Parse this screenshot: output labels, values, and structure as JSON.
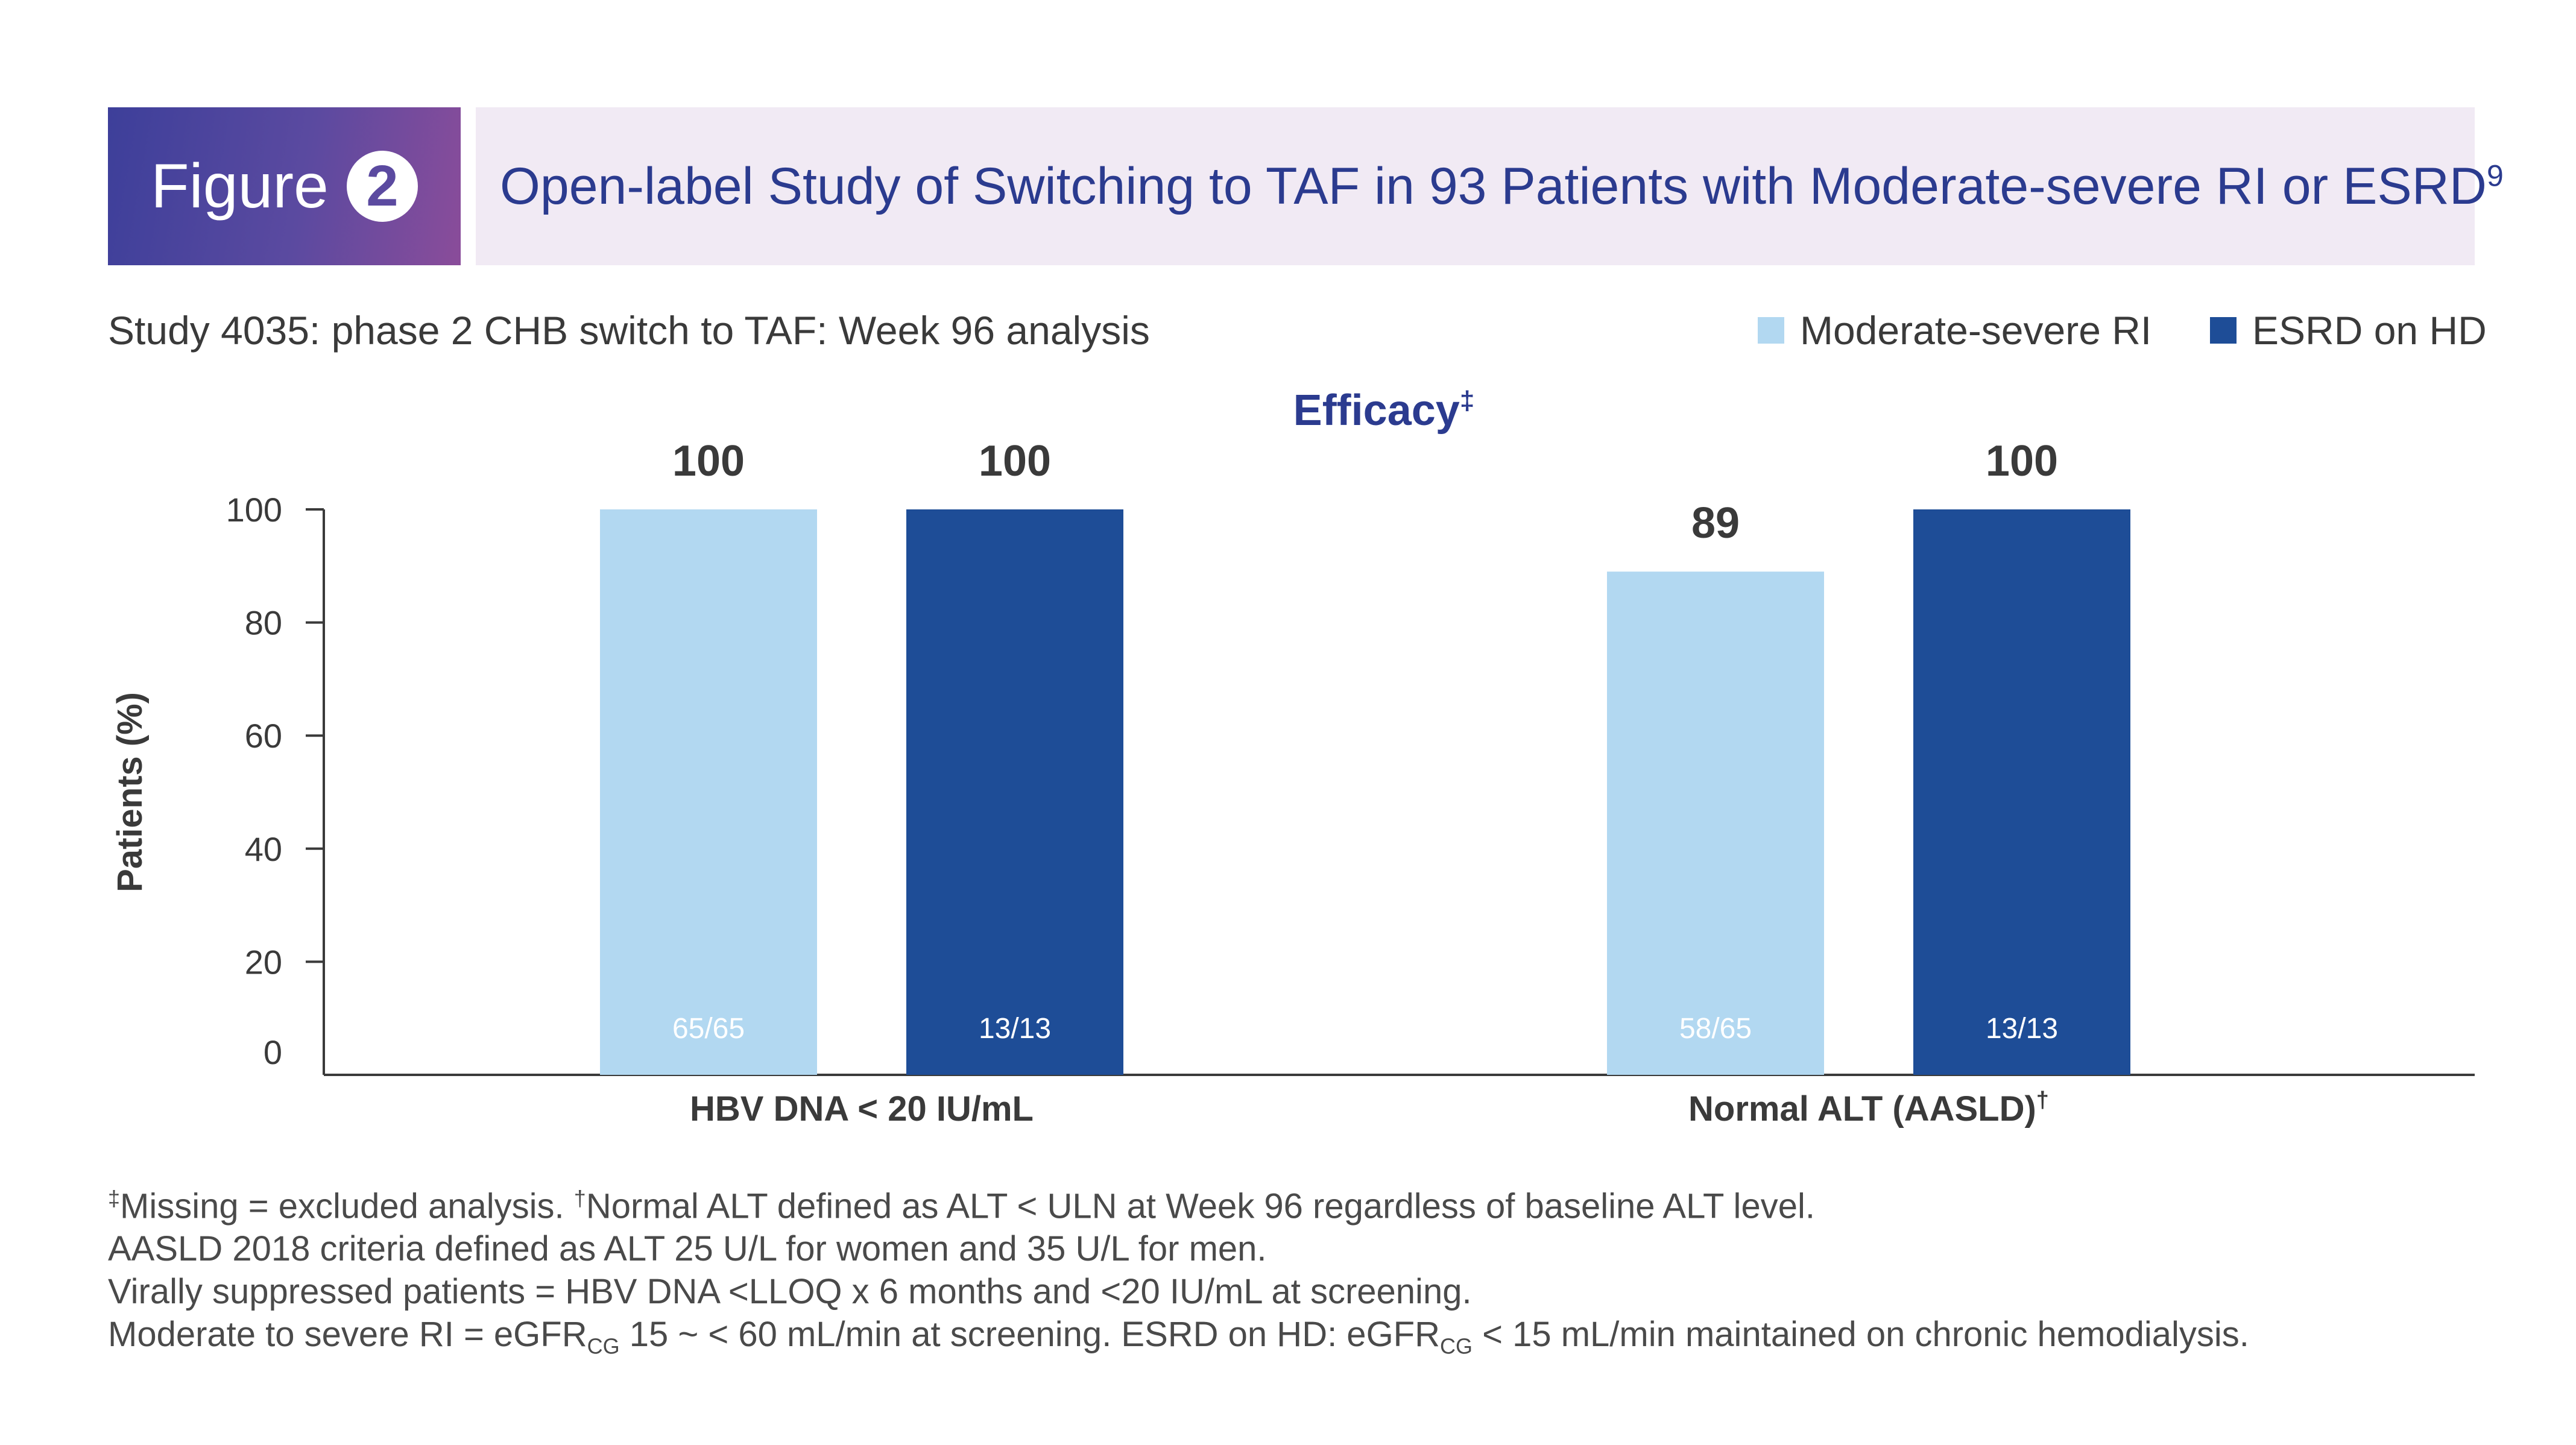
{
  "figure": {
    "label": "Figure",
    "number": "2",
    "title": "Open-label Study of Switching to TAF in 93 Patients with Moderate-severe RI or ESRD",
    "title_sup": "9"
  },
  "subtitle": "Study 4035: phase 2 CHB switch to TAF: Week 96 analysis",
  "colors": {
    "moderate_severe_ri": "#b2d8f1",
    "esrd_on_hd": "#1e4d97",
    "banner_accent": "#2b3b8f"
  },
  "chart_data": {
    "type": "bar",
    "title": "Efficacy",
    "title_sup": "‡",
    "ylabel": "Patients (%)",
    "xlabel": "",
    "ylim": [
      0,
      100
    ],
    "yticks": [
      0,
      20,
      40,
      60,
      80,
      100
    ],
    "grid": false,
    "legend_position": "top-right",
    "categories": [
      "HBV DNA < 20 IU/mL",
      "Normal ALT (AASLD)"
    ],
    "category_sups": [
      "",
      "†"
    ],
    "series": [
      {
        "name": "Moderate-severe RI",
        "values": [
          100,
          89
        ],
        "value_labels": [
          "100",
          "89"
        ],
        "counts": [
          "65/65",
          "58/65"
        ]
      },
      {
        "name": "ESRD on HD",
        "values": [
          100,
          100
        ],
        "value_labels": [
          "100",
          "100"
        ],
        "counts": [
          "13/13",
          "13/13"
        ]
      }
    ]
  },
  "footnotes": {
    "line1_sup_a": "‡",
    "line1_a": "Missing = excluded analysis. ",
    "line1_sup_b": "†",
    "line1_b": "Normal ALT defined as ALT < ULN at Week 96 regardless of baseline ALT level.",
    "line2": "AASLD 2018 criteria defined as ALT 25 U/L for women and 35 U/L for men.",
    "line3": "Virally suppressed patients = HBV DNA <LLOQ x 6 months and <20 IU/mL at screening.",
    "line4_a": "Moderate to severe RI = eGFR",
    "line4_sub_a": "CG",
    "line4_b": " 15 ~ < 60 mL/min at screening. ESRD on HD: eGFR",
    "line4_sub_b": "CG",
    "line4_c": " < 15 mL/min maintained on chronic hemodialysis."
  }
}
